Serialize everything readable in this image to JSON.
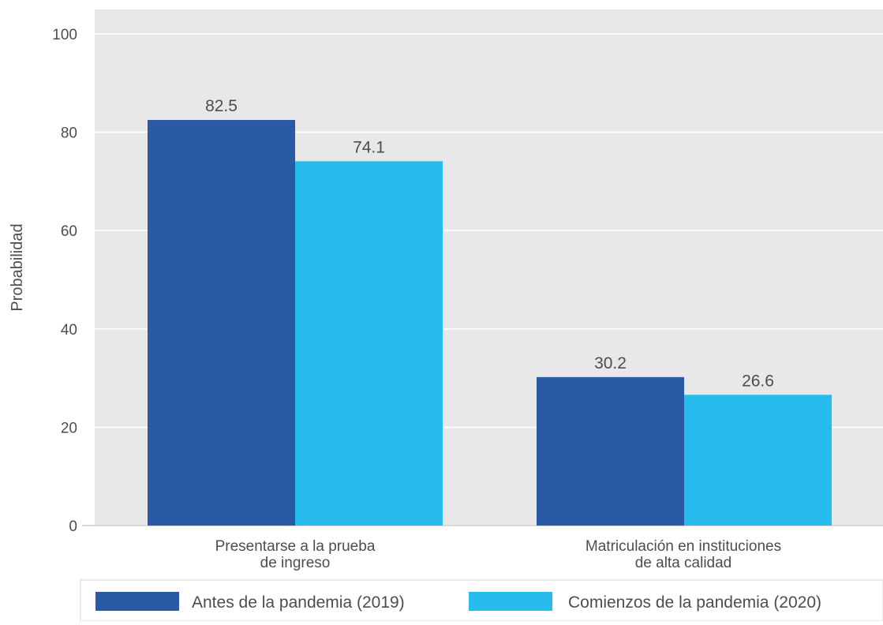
{
  "chart_data": {
    "type": "bar",
    "ylabel": "Probabilidad",
    "ylim": [
      0,
      100
    ],
    "yticks": [
      0,
      20,
      40,
      60,
      80,
      100
    ],
    "grid": true,
    "categories": [
      [
        "Presentarse a la prueba",
        "de ingreso"
      ],
      [
        "Matriculación en instituciones",
        "de alta calidad"
      ]
    ],
    "series": [
      {
        "name": "Antes de la pandemia (2019)",
        "values": [
          82.5,
          30.2
        ],
        "labels": [
          "82.5",
          "30.2"
        ],
        "color": "#2a59a6"
      },
      {
        "name": "Comienzos de la pandemia (2020)",
        "values": [
          74.1,
          26.6
        ],
        "labels": [
          "74.1",
          "26.6"
        ],
        "color": "#27bbee"
      }
    ],
    "legend_position": "bottom",
    "plot_background": "#e8e8e8",
    "grid_color": "#ffffff"
  }
}
